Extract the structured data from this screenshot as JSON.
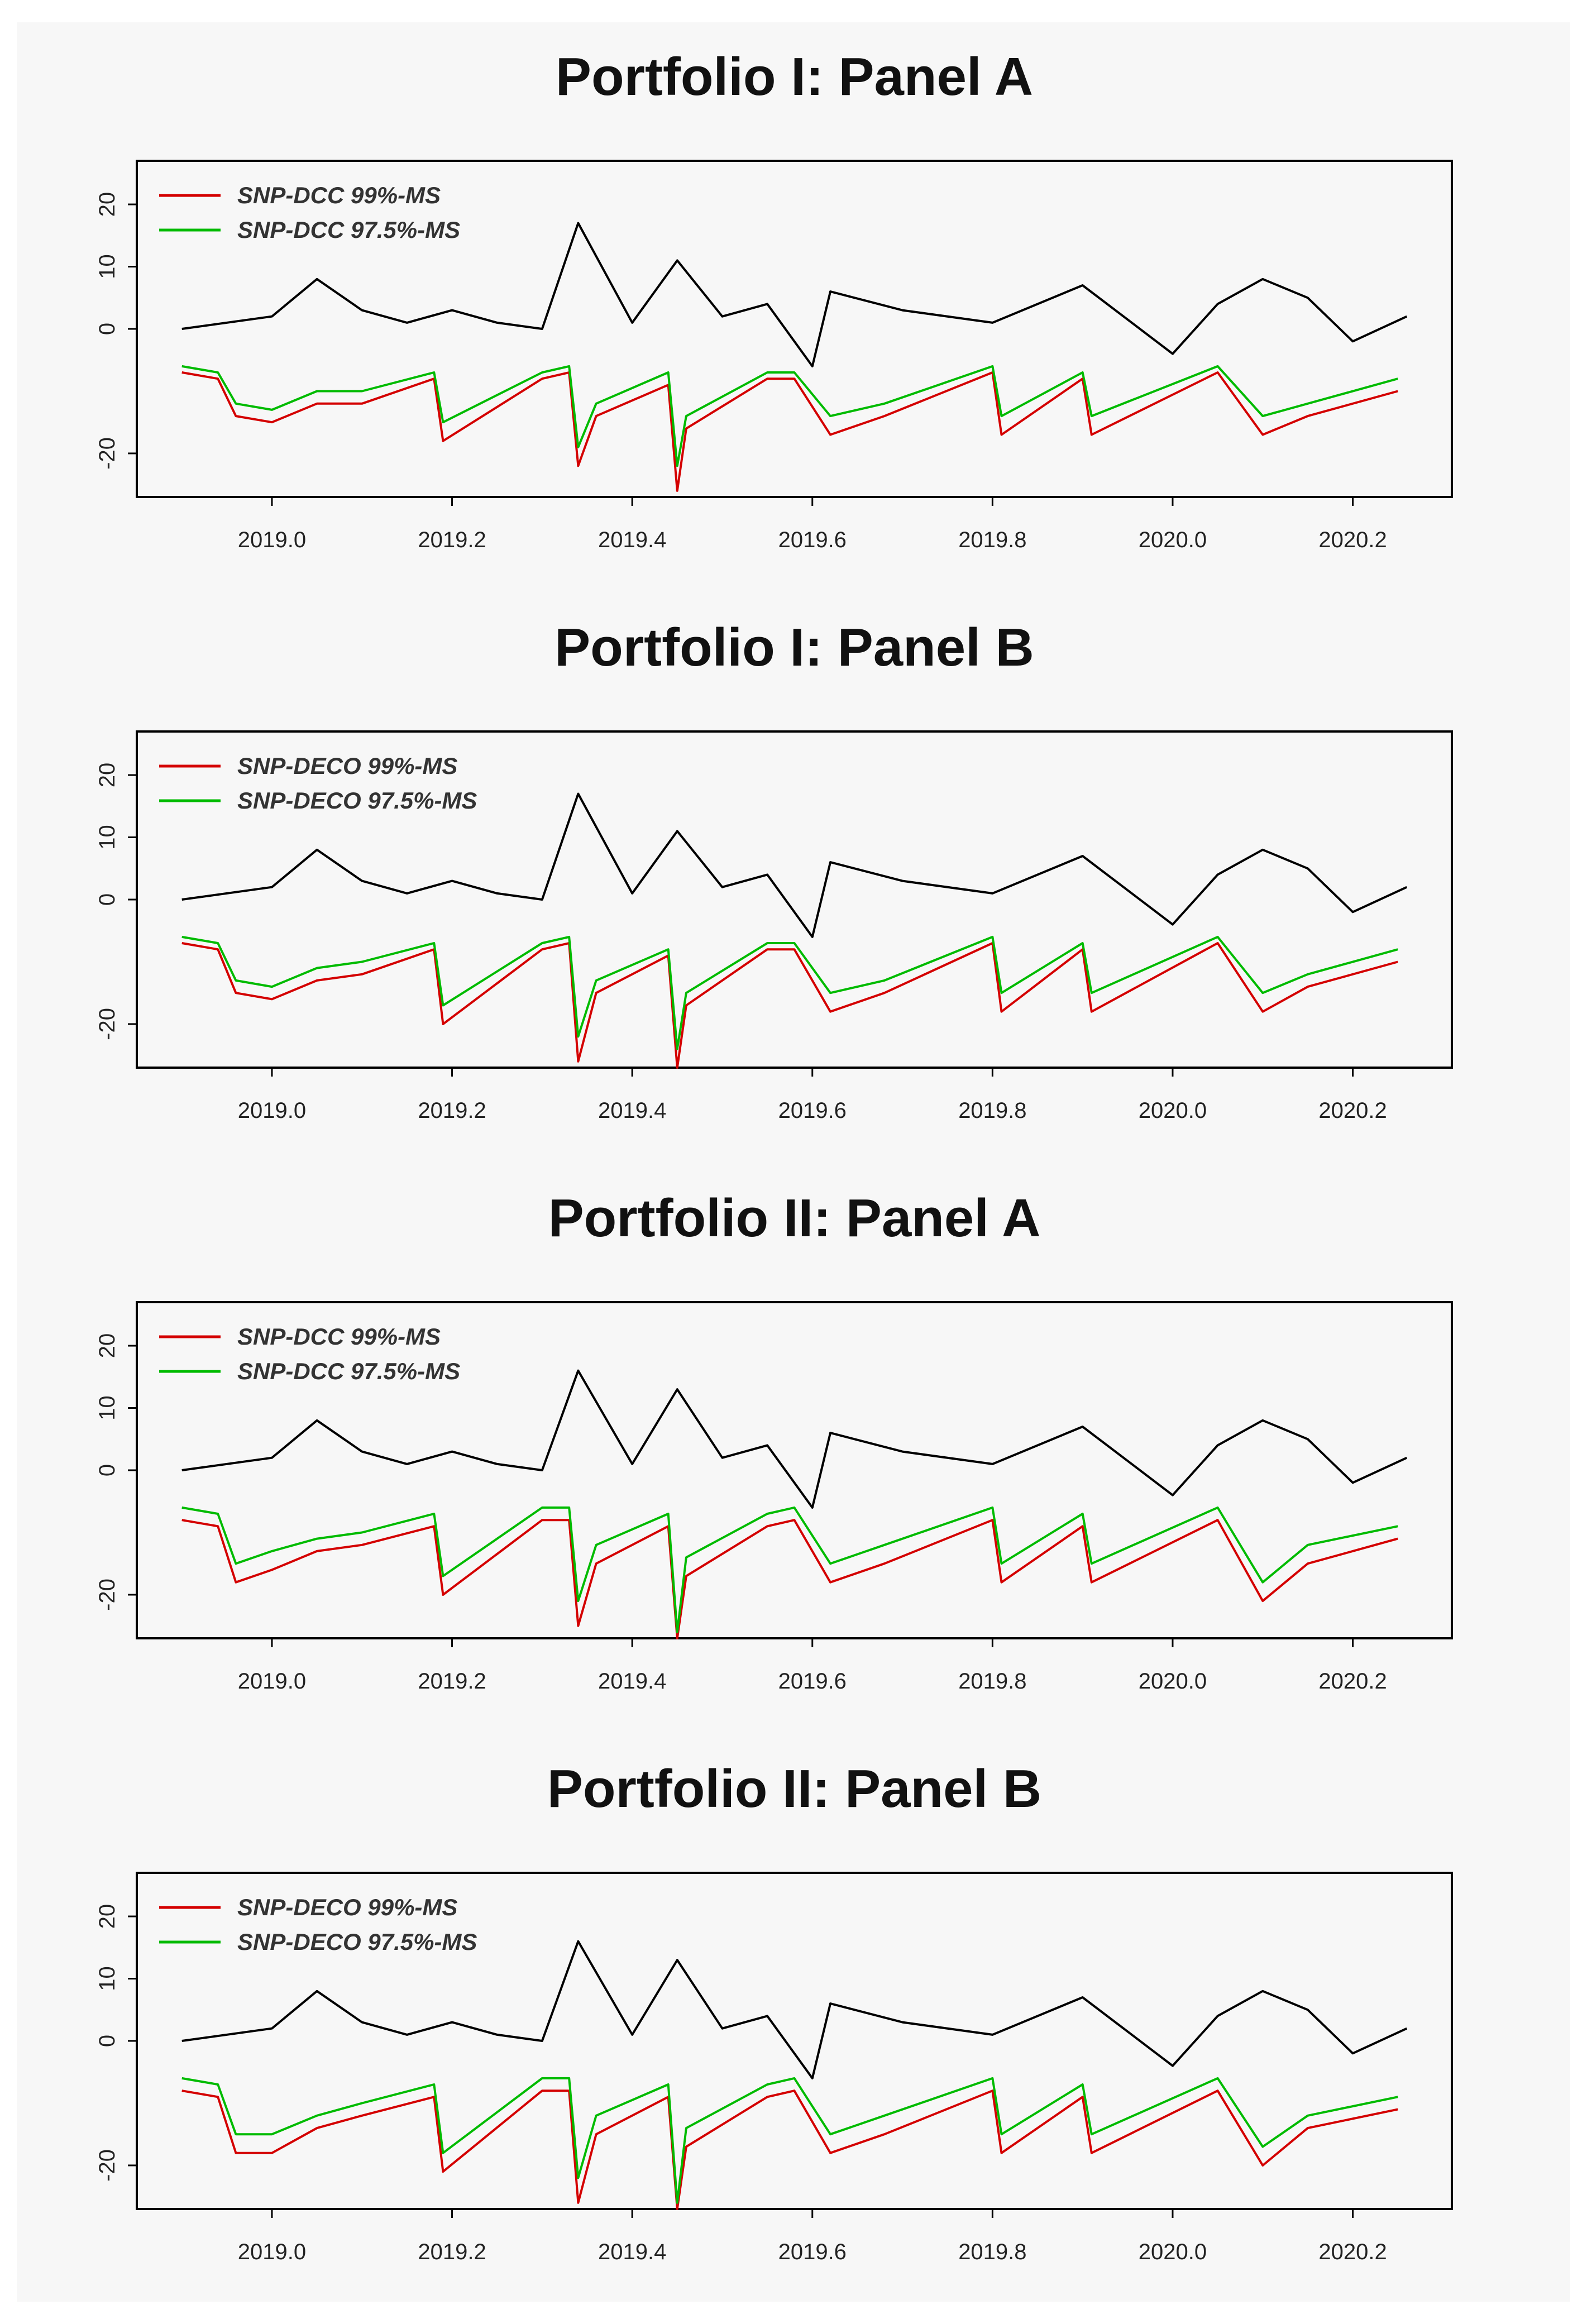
{
  "colors": {
    "observed": "#000000",
    "var99": "#d40000",
    "var975": "#00bb00"
  },
  "chart_data": [
    {
      "type": "line",
      "title": "Portfolio I: Panel A",
      "xlabel": "",
      "ylabel": "",
      "xlim": [
        2018.85,
        2020.31
      ],
      "ylim": [
        -27,
        27
      ],
      "x_ticks": [
        "2019.0",
        "2019.2",
        "2019.4",
        "2019.6",
        "2019.8",
        "2020.0",
        "2020.2"
      ],
      "y_ticks": [
        "-20",
        "0",
        "10",
        "20"
      ],
      "legend": {
        "position": "top-left",
        "entries": [
          "SNP-DCC 99%-MS",
          "SNP-DCC 97.5%-MS"
        ]
      },
      "series": [
        {
          "name": "",
          "color": "#000000",
          "x": [
            2018.9,
            2019.0,
            2019.05,
            2019.1,
            2019.15,
            2019.2,
            2019.25,
            2019.3,
            2019.34,
            2019.4,
            2019.45,
            2019.5,
            2019.55,
            2019.6,
            2019.62,
            2019.7,
            2019.8,
            2019.9,
            2020.0,
            2020.05,
            2020.1,
            2020.15,
            2020.2,
            2020.26
          ],
          "y": [
            0,
            2,
            8,
            3,
            1,
            3,
            1,
            0,
            17,
            1,
            11,
            2,
            4,
            -6,
            6,
            3,
            1,
            7,
            -4,
            4,
            8,
            5,
            -2,
            2
          ]
        },
        {
          "name": "SNP-DCC 99%-MS",
          "color": "#d40000",
          "x": [
            2018.9,
            2018.94,
            2018.96,
            2019.0,
            2019.05,
            2019.1,
            2019.18,
            2019.19,
            2019.3,
            2019.33,
            2019.34,
            2019.36,
            2019.44,
            2019.45,
            2019.46,
            2019.55,
            2019.58,
            2019.62,
            2019.68,
            2019.8,
            2019.81,
            2019.9,
            2019.91,
            2020.05,
            2020.1,
            2020.15,
            2020.25
          ],
          "y": [
            -7,
            -8,
            -14,
            -15,
            -12,
            -12,
            -8,
            -18,
            -8,
            -7,
            -22,
            -14,
            -9,
            -26,
            -16,
            -8,
            -8,
            -17,
            -14,
            -7,
            -17,
            -8,
            -17,
            -7,
            -17,
            -14,
            -10
          ]
        },
        {
          "name": "SNP-DCC 97.5%-MS",
          "color": "#00bb00",
          "x": [
            2018.9,
            2018.94,
            2018.96,
            2019.0,
            2019.05,
            2019.1,
            2019.18,
            2019.19,
            2019.3,
            2019.33,
            2019.34,
            2019.36,
            2019.44,
            2019.45,
            2019.46,
            2019.55,
            2019.58,
            2019.62,
            2019.68,
            2019.8,
            2019.81,
            2019.9,
            2019.91,
            2020.05,
            2020.1,
            2020.15,
            2020.25
          ],
          "y": [
            -6,
            -7,
            -12,
            -13,
            -10,
            -10,
            -7,
            -15,
            -7,
            -6,
            -19,
            -12,
            -7,
            -22,
            -14,
            -7,
            -7,
            -14,
            -12,
            -6,
            -14,
            -7,
            -14,
            -6,
            -14,
            -12,
            -8
          ]
        }
      ]
    },
    {
      "type": "line",
      "title": "Portfolio I: Panel B",
      "xlabel": "",
      "ylabel": "",
      "xlim": [
        2018.85,
        2020.31
      ],
      "ylim": [
        -27,
        27
      ],
      "x_ticks": [
        "2019.0",
        "2019.2",
        "2019.4",
        "2019.6",
        "2019.8",
        "2020.0",
        "2020.2"
      ],
      "y_ticks": [
        "-20",
        "0",
        "10",
        "20"
      ],
      "legend": {
        "position": "top-left",
        "entries": [
          "SNP-DECO 99%-MS",
          "SNP-DECO 97.5%-MS"
        ]
      },
      "series": [
        {
          "name": "",
          "color": "#000000",
          "x": [
            2018.9,
            2019.0,
            2019.05,
            2019.1,
            2019.15,
            2019.2,
            2019.25,
            2019.3,
            2019.34,
            2019.4,
            2019.45,
            2019.5,
            2019.55,
            2019.6,
            2019.62,
            2019.7,
            2019.8,
            2019.9,
            2020.0,
            2020.05,
            2020.1,
            2020.15,
            2020.2,
            2020.26
          ],
          "y": [
            0,
            2,
            8,
            3,
            1,
            3,
            1,
            0,
            17,
            1,
            11,
            2,
            4,
            -6,
            6,
            3,
            1,
            7,
            -4,
            4,
            8,
            5,
            -2,
            2
          ]
        },
        {
          "name": "SNP-DECO 99%-MS",
          "color": "#d40000",
          "x": [
            2018.9,
            2018.94,
            2018.96,
            2019.0,
            2019.05,
            2019.1,
            2019.18,
            2019.19,
            2019.3,
            2019.33,
            2019.34,
            2019.36,
            2019.44,
            2019.45,
            2019.46,
            2019.55,
            2019.58,
            2019.62,
            2019.68,
            2019.8,
            2019.81,
            2019.9,
            2019.91,
            2020.05,
            2020.1,
            2020.15,
            2020.25
          ],
          "y": [
            -7,
            -8,
            -15,
            -16,
            -13,
            -12,
            -8,
            -20,
            -8,
            -7,
            -26,
            -15,
            -9,
            -27,
            -17,
            -8,
            -8,
            -18,
            -15,
            -7,
            -18,
            -8,
            -18,
            -7,
            -18,
            -14,
            -10
          ]
        },
        {
          "name": "SNP-DECO 97.5%-MS",
          "color": "#00bb00",
          "x": [
            2018.9,
            2018.94,
            2018.96,
            2019.0,
            2019.05,
            2019.1,
            2019.18,
            2019.19,
            2019.3,
            2019.33,
            2019.34,
            2019.36,
            2019.44,
            2019.45,
            2019.46,
            2019.55,
            2019.58,
            2019.62,
            2019.68,
            2019.8,
            2019.81,
            2019.9,
            2019.91,
            2020.05,
            2020.1,
            2020.15,
            2020.25
          ],
          "y": [
            -6,
            -7,
            -13,
            -14,
            -11,
            -10,
            -7,
            -17,
            -7,
            -6,
            -22,
            -13,
            -8,
            -24,
            -15,
            -7,
            -7,
            -15,
            -13,
            -6,
            -15,
            -7,
            -15,
            -6,
            -15,
            -12,
            -8
          ]
        }
      ]
    },
    {
      "type": "line",
      "title": "Portfolio II: Panel A",
      "xlabel": "",
      "ylabel": "",
      "xlim": [
        2018.85,
        2020.31
      ],
      "ylim": [
        -27,
        27
      ],
      "x_ticks": [
        "2019.0",
        "2019.2",
        "2019.4",
        "2019.6",
        "2019.8",
        "2020.0",
        "2020.2"
      ],
      "y_ticks": [
        "-20",
        "0",
        "10",
        "20"
      ],
      "legend": {
        "position": "top-left",
        "entries": [
          "SNP-DCC 99%-MS",
          "SNP-DCC 97.5%-MS"
        ]
      },
      "series": [
        {
          "name": "",
          "color": "#000000",
          "x": [
            2018.9,
            2019.0,
            2019.05,
            2019.1,
            2019.15,
            2019.2,
            2019.25,
            2019.3,
            2019.34,
            2019.4,
            2019.45,
            2019.5,
            2019.55,
            2019.6,
            2019.62,
            2019.7,
            2019.8,
            2019.9,
            2020.0,
            2020.05,
            2020.1,
            2020.15,
            2020.2,
            2020.26
          ],
          "y": [
            0,
            2,
            8,
            3,
            1,
            3,
            1,
            0,
            16,
            1,
            13,
            2,
            4,
            -6,
            6,
            3,
            1,
            7,
            -4,
            4,
            8,
            5,
            -2,
            2
          ]
        },
        {
          "name": "SNP-DCC 99%-MS",
          "color": "#d40000",
          "x": [
            2018.9,
            2018.94,
            2018.96,
            2019.0,
            2019.05,
            2019.1,
            2019.18,
            2019.19,
            2019.3,
            2019.33,
            2019.34,
            2019.36,
            2019.44,
            2019.45,
            2019.46,
            2019.55,
            2019.58,
            2019.62,
            2019.68,
            2019.8,
            2019.81,
            2019.9,
            2019.91,
            2020.05,
            2020.1,
            2020.15,
            2020.25
          ],
          "y": [
            -8,
            -9,
            -18,
            -16,
            -13,
            -12,
            -9,
            -20,
            -8,
            -8,
            -25,
            -15,
            -9,
            -27,
            -17,
            -9,
            -8,
            -18,
            -15,
            -8,
            -18,
            -9,
            -18,
            -8,
            -21,
            -15,
            -11
          ]
        },
        {
          "name": "SNP-DCC 97.5%-MS",
          "color": "#00bb00",
          "x": [
            2018.9,
            2018.94,
            2018.96,
            2019.0,
            2019.05,
            2019.1,
            2019.18,
            2019.19,
            2019.3,
            2019.33,
            2019.34,
            2019.36,
            2019.44,
            2019.45,
            2019.46,
            2019.55,
            2019.58,
            2019.62,
            2019.68,
            2019.8,
            2019.81,
            2019.9,
            2019.91,
            2020.05,
            2020.1,
            2020.15,
            2020.25
          ],
          "y": [
            -6,
            -7,
            -15,
            -13,
            -11,
            -10,
            -7,
            -17,
            -6,
            -6,
            -21,
            -12,
            -7,
            -26,
            -14,
            -7,
            -6,
            -15,
            -12,
            -6,
            -15,
            -7,
            -15,
            -6,
            -18,
            -12,
            -9
          ]
        }
      ]
    },
    {
      "type": "line",
      "title": "Portfolio II: Panel B",
      "xlabel": "",
      "ylabel": "",
      "xlim": [
        2018.85,
        2020.31
      ],
      "ylim": [
        -27,
        27
      ],
      "x_ticks": [
        "2019.0",
        "2019.2",
        "2019.4",
        "2019.6",
        "2019.8",
        "2020.0",
        "2020.2"
      ],
      "y_ticks": [
        "-20",
        "0",
        "10",
        "20"
      ],
      "legend": {
        "position": "top-left",
        "entries": [
          "SNP-DECO 99%-MS",
          "SNP-DECO 97.5%-MS"
        ]
      },
      "series": [
        {
          "name": "",
          "color": "#000000",
          "x": [
            2018.9,
            2019.0,
            2019.05,
            2019.1,
            2019.15,
            2019.2,
            2019.25,
            2019.3,
            2019.34,
            2019.4,
            2019.45,
            2019.5,
            2019.55,
            2019.6,
            2019.62,
            2019.7,
            2019.8,
            2019.9,
            2020.0,
            2020.05,
            2020.1,
            2020.15,
            2020.2,
            2020.26
          ],
          "y": [
            0,
            2,
            8,
            3,
            1,
            3,
            1,
            0,
            16,
            1,
            13,
            2,
            4,
            -6,
            6,
            3,
            1,
            7,
            -4,
            4,
            8,
            5,
            -2,
            2
          ]
        },
        {
          "name": "SNP-DECO 99%-MS",
          "color": "#d40000",
          "x": [
            2018.9,
            2018.94,
            2018.96,
            2019.0,
            2019.05,
            2019.1,
            2019.18,
            2019.19,
            2019.3,
            2019.33,
            2019.34,
            2019.36,
            2019.44,
            2019.45,
            2019.46,
            2019.55,
            2019.58,
            2019.62,
            2019.68,
            2019.8,
            2019.81,
            2019.9,
            2019.91,
            2020.05,
            2020.1,
            2020.15,
            2020.25
          ],
          "y": [
            -8,
            -9,
            -18,
            -18,
            -14,
            -12,
            -9,
            -21,
            -8,
            -8,
            -26,
            -15,
            -9,
            -27,
            -17,
            -9,
            -8,
            -18,
            -15,
            -8,
            -18,
            -9,
            -18,
            -8,
            -20,
            -14,
            -11
          ]
        },
        {
          "name": "SNP-DECO 97.5%-MS",
          "color": "#00bb00",
          "x": [
            2018.9,
            2018.94,
            2018.96,
            2019.0,
            2019.05,
            2019.1,
            2019.18,
            2019.19,
            2019.3,
            2019.33,
            2019.34,
            2019.36,
            2019.44,
            2019.45,
            2019.46,
            2019.55,
            2019.58,
            2019.62,
            2019.68,
            2019.8,
            2019.81,
            2019.9,
            2019.91,
            2020.05,
            2020.1,
            2020.15,
            2020.25
          ],
          "y": [
            -6,
            -7,
            -15,
            -15,
            -12,
            -10,
            -7,
            -18,
            -6,
            -6,
            -22,
            -12,
            -7,
            -26,
            -14,
            -7,
            -6,
            -15,
            -12,
            -6,
            -15,
            -7,
            -15,
            -6,
            -17,
            -12,
            -9
          ]
        }
      ]
    }
  ]
}
